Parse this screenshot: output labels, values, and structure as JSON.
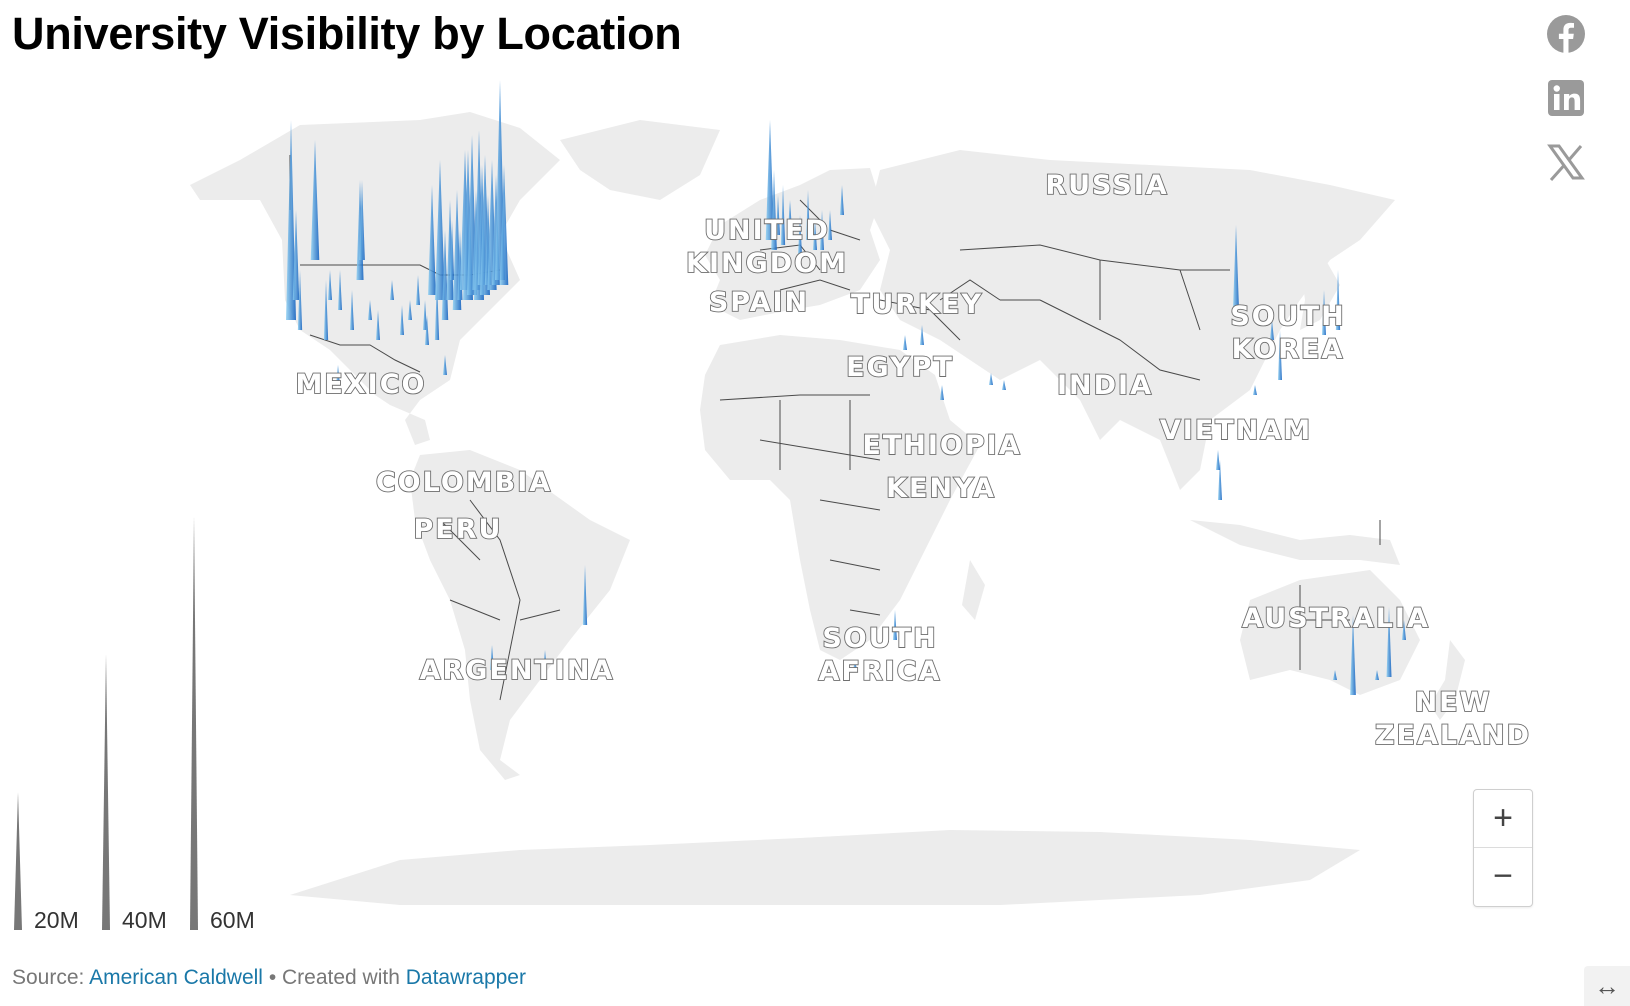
{
  "title": "University Visibility by Location",
  "social": {
    "facebook_icon": "facebook-icon",
    "linkedin_icon": "linkedin-icon",
    "x_icon": "x-twitter-icon",
    "icon_color": "#9a9a9a"
  },
  "map": {
    "type": "spike-map",
    "land_color": "#ececec",
    "border_color": "#4a4a4a",
    "spike_color_light": "#8fd0f2",
    "spike_color_dark": "#0a5bbd",
    "country_labels": [
      {
        "id": "russia",
        "lines": [
          "RUSSIA"
        ]
      },
      {
        "id": "united-kingdom",
        "lines": [
          "UNITED",
          "KINGDOM"
        ]
      },
      {
        "id": "spain",
        "lines": [
          "SPAIN"
        ]
      },
      {
        "id": "turkey",
        "lines": [
          "TURKEY"
        ]
      },
      {
        "id": "egypt",
        "lines": [
          "EGYPT"
        ]
      },
      {
        "id": "india",
        "lines": [
          "INDIA"
        ]
      },
      {
        "id": "south-korea",
        "lines": [
          "SOUTH",
          "KOREA"
        ]
      },
      {
        "id": "vietnam",
        "lines": [
          "VIETNAM"
        ]
      },
      {
        "id": "mexico",
        "lines": [
          "MEXICO"
        ]
      },
      {
        "id": "colombia",
        "lines": [
          "COLOMBIA"
        ]
      },
      {
        "id": "peru",
        "lines": [
          "PERU"
        ]
      },
      {
        "id": "ethiopia",
        "lines": [
          "ETHIOPIA"
        ]
      },
      {
        "id": "kenya",
        "lines": [
          "KENYA"
        ]
      },
      {
        "id": "argentina",
        "lines": [
          "ARGENTINA"
        ]
      },
      {
        "id": "south-africa",
        "lines": [
          "SOUTH",
          "AFRICA"
        ]
      },
      {
        "id": "australia",
        "lines": [
          "AUSTRALIA"
        ]
      },
      {
        "id": "new-zealand",
        "lines": [
          "NEW",
          "ZEALAND"
        ]
      }
    ]
  },
  "legend": {
    "items": [
      {
        "label": "20M",
        "value": 20
      },
      {
        "label": "40M",
        "value": 40
      },
      {
        "label": "60M",
        "value": 60
      }
    ],
    "color": "#777777"
  },
  "zoom": {
    "in_label": "+",
    "out_label": "−"
  },
  "footer": {
    "source_prefix": "Source:",
    "source_link": "American Caldwell",
    "separator": "•",
    "created_prefix": "Created with",
    "created_link": "Datawrapper"
  },
  "resize_icon": "↔"
}
